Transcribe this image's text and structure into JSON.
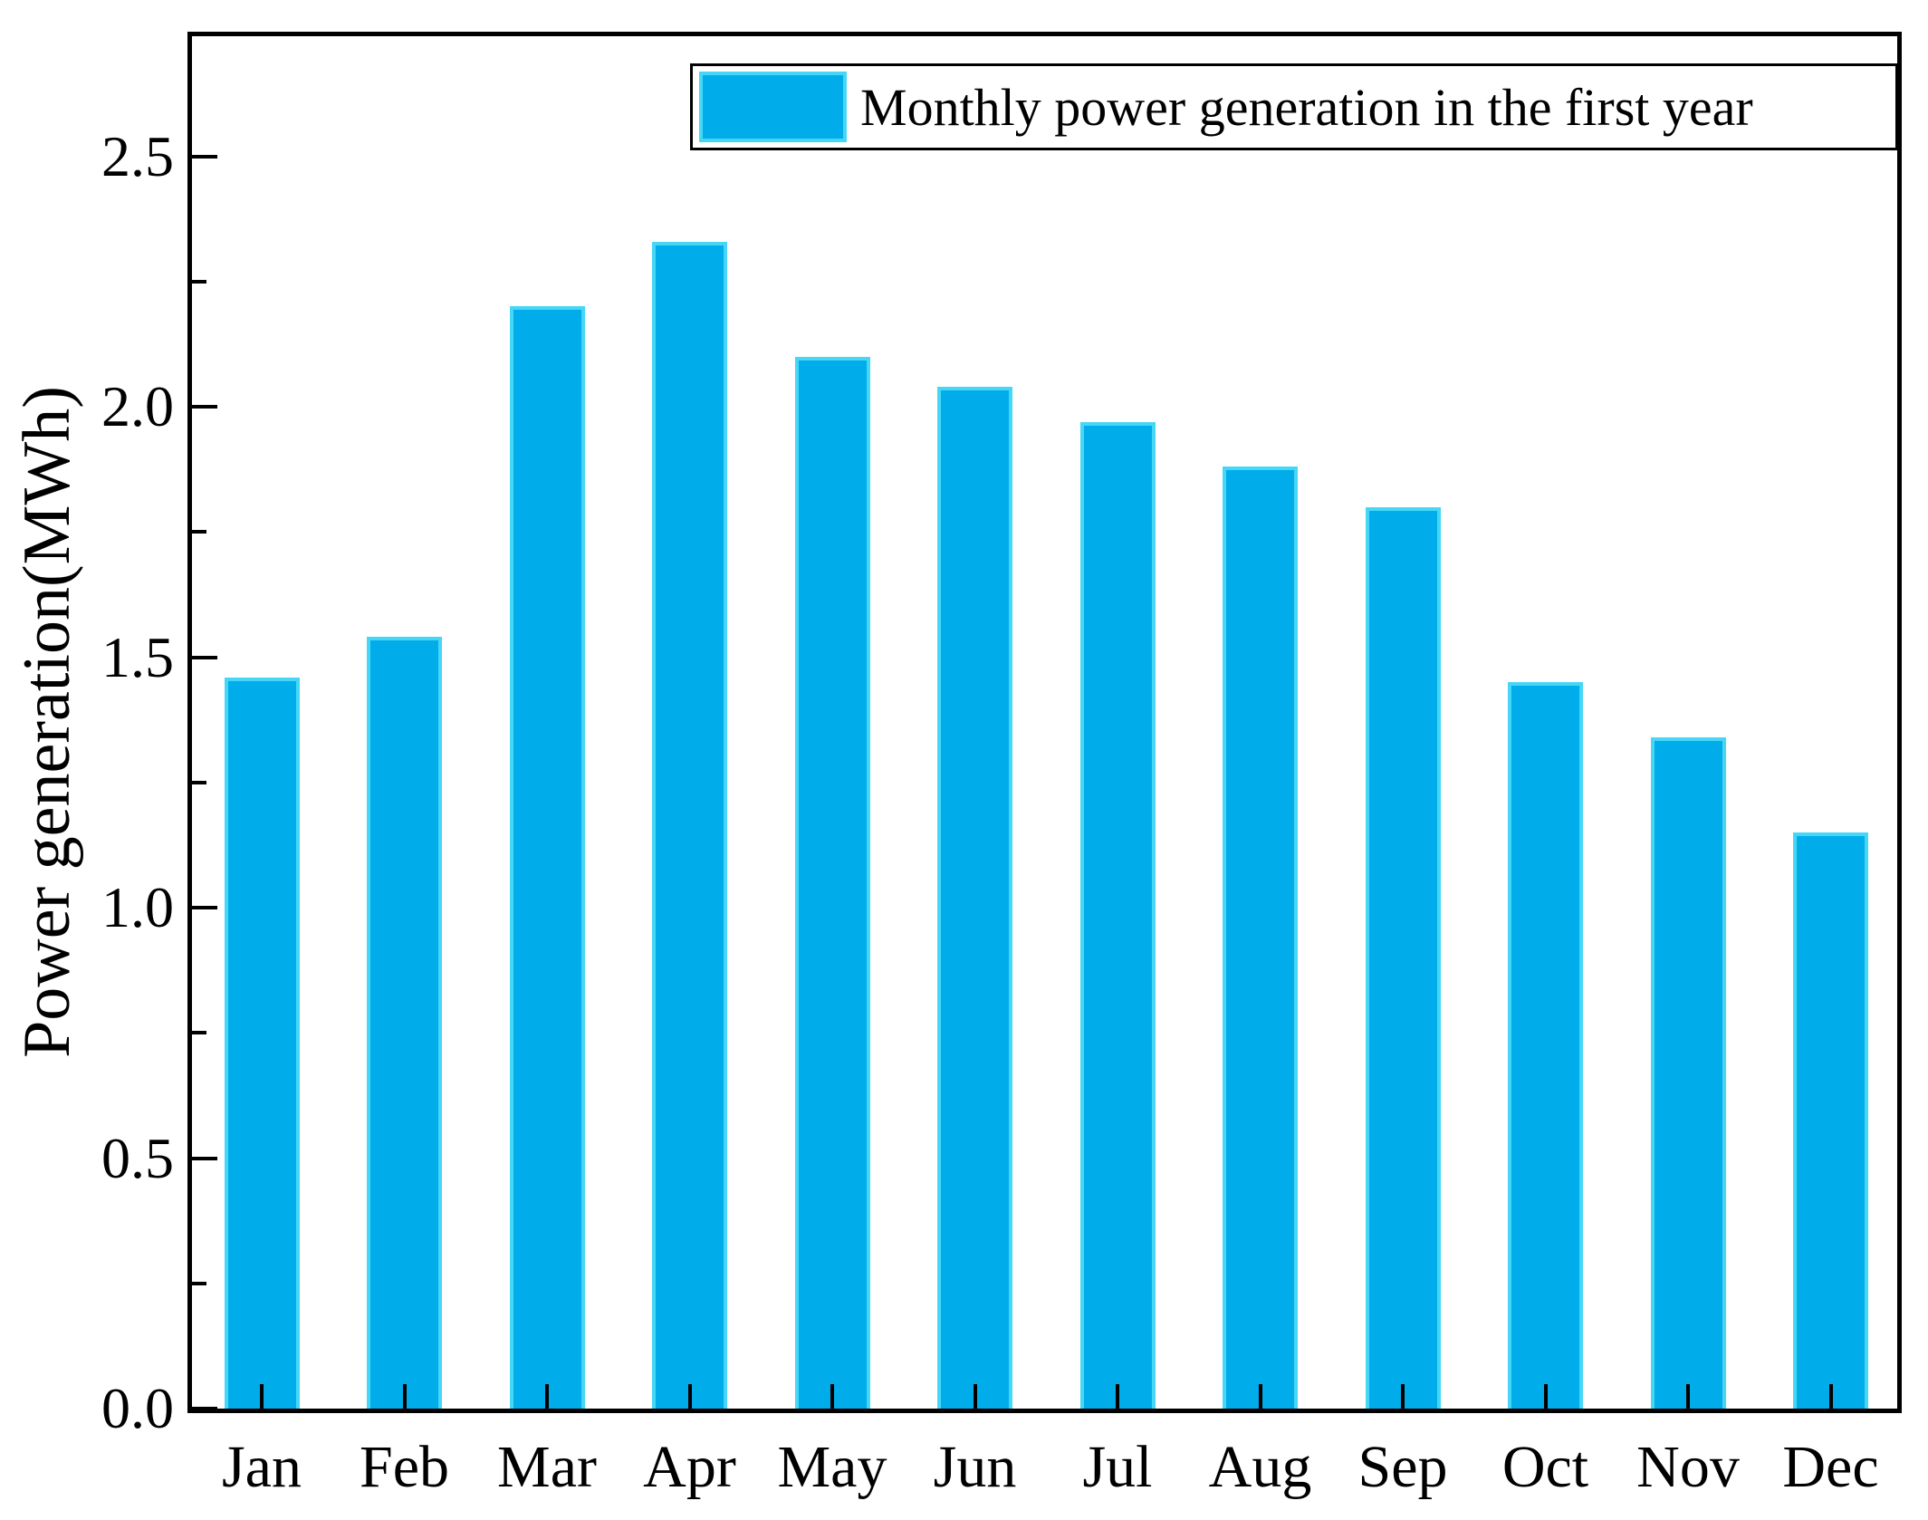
{
  "figure": {
    "background": "#ffffff",
    "frame_color": "#000000"
  },
  "legend": {
    "label": "Monthly power generation in the first year",
    "swatch_fill": "#00ACEA",
    "swatch_border": "#46D7F7",
    "position": "top-right-inside"
  },
  "chart_data": {
    "type": "bar",
    "title": "",
    "xlabel": "",
    "ylabel": "Power generation(MWh)",
    "categories": [
      "Jan",
      "Feb",
      "Mar",
      "Apr",
      "May",
      "Jun",
      "Jul",
      "Aug",
      "Sep",
      "Oct",
      "Nov",
      "Dec"
    ],
    "values": [
      1.46,
      1.54,
      2.2,
      2.33,
      2.1,
      2.04,
      1.97,
      1.88,
      1.8,
      1.45,
      1.34,
      1.15
    ],
    "series_name": "Monthly power generation in the first year",
    "ylim": [
      0,
      2.75
    ],
    "yticks_major": [
      0.0,
      0.5,
      1.0,
      1.5,
      2.0,
      2.5
    ],
    "yticks_minor": [
      0.25,
      0.75,
      1.25,
      1.75,
      2.25
    ],
    "ytick_label_format": "one-decimal",
    "bar_fill": "#00ACEA",
    "bar_border": "#46D7F7",
    "grid": false,
    "tick_direction": "in"
  }
}
